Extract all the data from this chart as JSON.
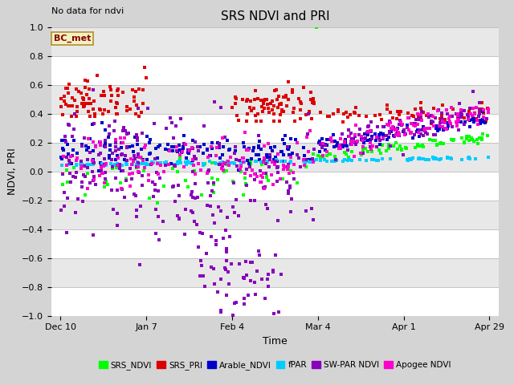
{
  "title": "SRS NDVI and PRI",
  "xlabel": "Time",
  "ylabel": "NDVI, PRI",
  "ylim": [
    -1.0,
    1.0
  ],
  "annotation_top_left": "No data for ndvi",
  "textbox_label": "BC_met",
  "fig_facecolor": "#d4d4d4",
  "ax_facecolor": "#e8e8e8",
  "series": [
    {
      "label": "SRS_NDVI",
      "color": "#00ff00"
    },
    {
      "label": "SRS_PRI",
      "color": "#dd0000"
    },
    {
      "label": "Arable_NDVI",
      "color": "#0000cc"
    },
    {
      "label": "fPAR",
      "color": "#00ccff"
    },
    {
      "label": "SW-PAR NDVI",
      "color": "#8800bb"
    },
    {
      "label": "Apogee NDVI",
      "color": "#ff00cc"
    }
  ],
  "xtick_labels": [
    "Dec 10",
    "Jan 7",
    "Feb 4",
    "Mar 4",
    "Apr 1",
    "Apr 29"
  ],
  "xtick_days": [
    0,
    28,
    56,
    84,
    112,
    140
  ]
}
